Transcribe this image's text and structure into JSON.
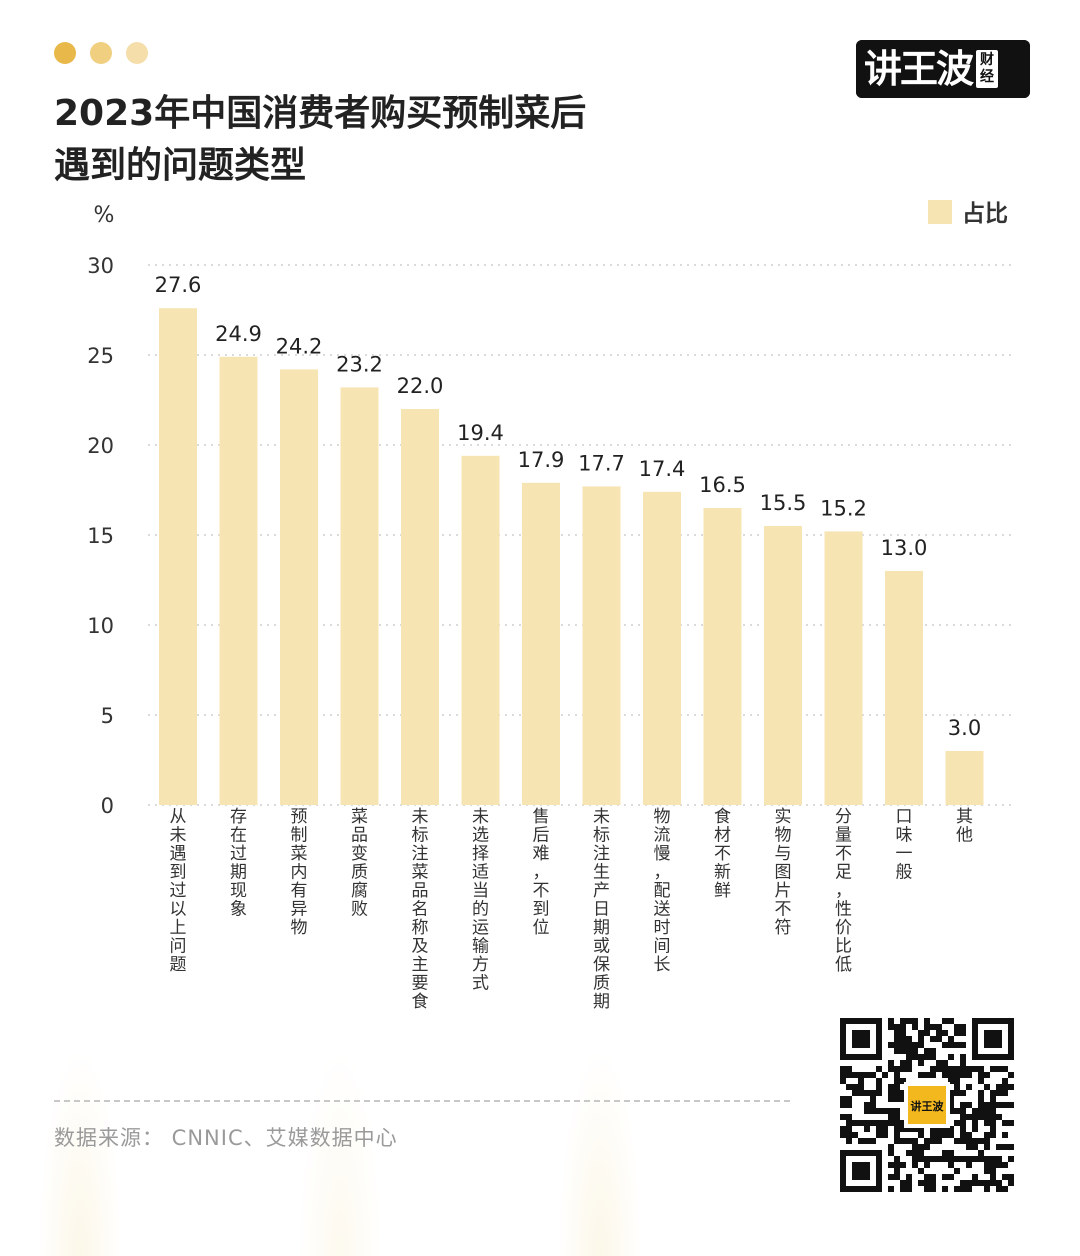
{
  "header": {
    "dot_colors": [
      "#E8B84A",
      "#F0CF80",
      "#F5DEAA"
    ],
    "title_line1": "2023年中国消费者购买预制菜后",
    "title_line2": "遇到的问题类型"
  },
  "logo": {
    "main_text": "讲王波",
    "sub_text": "财经"
  },
  "chart_data": {
    "type": "bar",
    "ylabel": "%",
    "ylim": [
      0,
      30
    ],
    "yticks": [
      0,
      5,
      10,
      15,
      20,
      25,
      30
    ],
    "grid": true,
    "legend_position": "top-right",
    "series": [
      {
        "name": "占比",
        "color": "#F7E4B3",
        "values": [
          27.6,
          24.9,
          24.2,
          23.2,
          22.0,
          19.4,
          17.9,
          17.7,
          17.4,
          16.5,
          15.5,
          15.2,
          13.0,
          3.0
        ],
        "value_labels": [
          "27.6",
          "24.9",
          "24.2",
          "23.2",
          "22.0",
          "19.4",
          "17.9",
          "17.7",
          "17.4",
          "16.5",
          "15.5",
          "15.2",
          "13.0",
          "3.0"
        ]
      }
    ],
    "categories": [
      "从未遇到过以上问题",
      "存在过期现象",
      "预制菜内有异物",
      "菜品变质腐败",
      "未标注菜品名称及主要食材",
      "未选择适当的运输方式",
      "售后难，不到位",
      "未标注生产日期或保质期",
      "物流慢，配送时间长",
      "食材不新鲜",
      "实物与图片不符",
      "分量不足，性价比低",
      "口味一般",
      "其他"
    ]
  },
  "footer": {
    "source": "数据来源：  CNNIC、艾媒数据中心",
    "qr_center_text": "讲王波"
  }
}
